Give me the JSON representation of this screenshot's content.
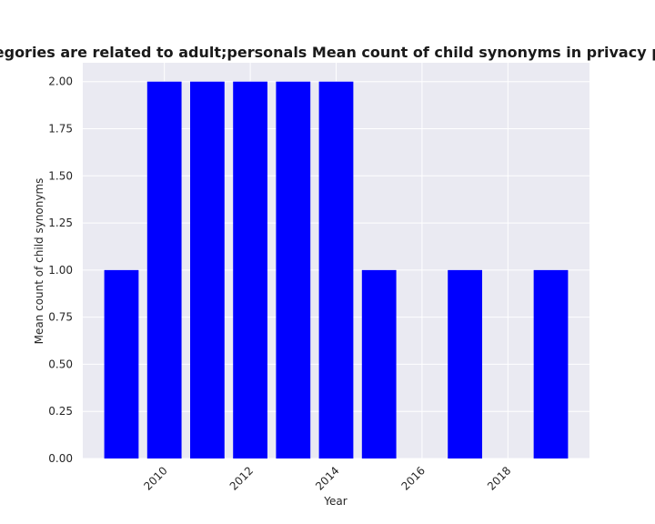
{
  "chart_data": {
    "type": "bar",
    "title": "en categories are related to adult;personals Mean count of child synonyms in privacy policies b",
    "xlabel": "Year",
    "ylabel": "Mean count of child synonyms",
    "x": [
      2009,
      2010,
      2011,
      2012,
      2013,
      2014,
      2015,
      2017,
      2019
    ],
    "values": [
      1,
      2,
      2,
      2,
      2,
      2,
      1,
      1,
      1
    ],
    "xlim": [
      2008.1,
      2019.9
    ],
    "ylim": [
      0,
      2.1
    ],
    "xticks": [
      2010,
      2012,
      2014,
      2016,
      2018
    ],
    "yticks": [
      "0.00",
      "0.25",
      "0.50",
      "0.75",
      "1.00",
      "1.25",
      "1.50",
      "1.75",
      "2.00"
    ],
    "grid": true,
    "colors": {
      "bar": "#0000ff",
      "plot_background": "#eaeaf2",
      "grid": "#ffffff"
    }
  }
}
